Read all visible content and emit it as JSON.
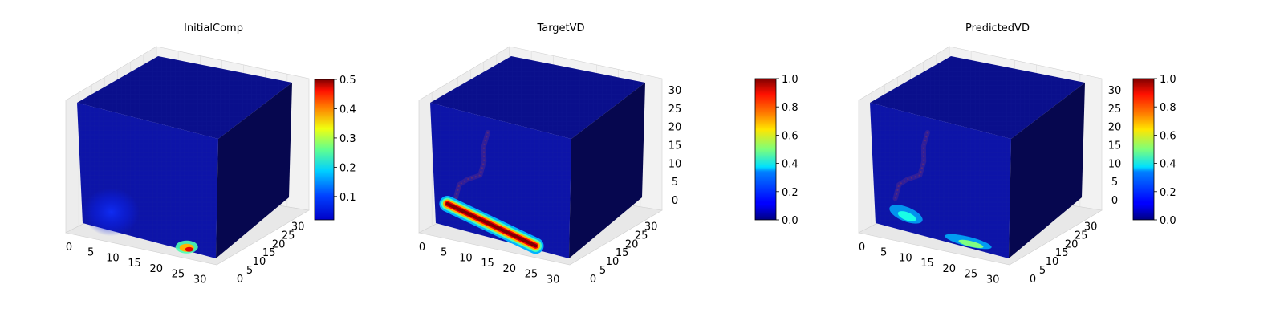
{
  "figure": {
    "colormap": "jet",
    "panels": [
      {
        "title": "InitialComp",
        "x_ticks": [
          "0",
          "5",
          "10",
          "15",
          "20",
          "25",
          "30"
        ],
        "y_ticks": [
          "0",
          "5",
          "10",
          "15",
          "20",
          "25",
          "30"
        ],
        "z_ticks": [],
        "colorbar_ticks": [
          "0.1",
          "0.2",
          "0.3",
          "0.4",
          "0.5"
        ]
      },
      {
        "title": "TargetVD",
        "x_ticks": [
          "0",
          "5",
          "10",
          "15",
          "20",
          "25",
          "30"
        ],
        "y_ticks": [
          "0",
          "5",
          "10",
          "15",
          "20",
          "25",
          "30"
        ],
        "z_ticks": [
          "0",
          "5",
          "10",
          "15",
          "20",
          "25",
          "30"
        ],
        "colorbar_ticks": [
          "0.0",
          "0.2",
          "0.4",
          "0.6",
          "0.8",
          "1.0"
        ]
      },
      {
        "title": "PredictedVD",
        "x_ticks": [
          "0",
          "5",
          "10",
          "15",
          "20",
          "25",
          "30"
        ],
        "y_ticks": [
          "0",
          "5",
          "10",
          "15",
          "20",
          "25",
          "30"
        ],
        "z_ticks": [
          "0",
          "5",
          "10",
          "15",
          "20",
          "25",
          "30"
        ],
        "colorbar_ticks": [
          "0.0",
          "0.2",
          "0.4",
          "0.6",
          "0.8",
          "1.0"
        ]
      }
    ]
  },
  "chart_data": [
    {
      "type": "heatmap",
      "title": "InitialComp",
      "xlim": [
        0,
        32
      ],
      "ylim": [
        0,
        32
      ],
      "zlim": [
        0,
        32
      ],
      "x_ticks": [
        0,
        5,
        10,
        15,
        20,
        25,
        30
      ],
      "y_ticks": [
        0,
        5,
        10,
        15,
        20,
        25,
        30
      ],
      "colorbar_range": [
        0.02,
        0.5
      ],
      "colorbar_ticks": [
        0.1,
        0.2,
        0.3,
        0.4,
        0.5
      ],
      "front_face_hotspots": [
        {
          "x": 7,
          "z": 5,
          "value": 0.1,
          "spread": 5
        },
        {
          "x": 25,
          "z": 1,
          "value": 0.45,
          "spread": 1.5
        }
      ],
      "background_value": 0.02
    },
    {
      "type": "heatmap",
      "title": "TargetVD",
      "xlim": [
        0,
        32
      ],
      "ylim": [
        0,
        32
      ],
      "zlim": [
        0,
        32
      ],
      "x_ticks": [
        0,
        5,
        10,
        15,
        20,
        25,
        30
      ],
      "y_ticks": [
        0,
        5,
        10,
        15,
        20,
        25,
        30
      ],
      "z_ticks": [
        0,
        5,
        10,
        15,
        20,
        25,
        30
      ],
      "colorbar_range": [
        0.0,
        1.0
      ],
      "colorbar_ticks": [
        0.0,
        0.2,
        0.4,
        0.6,
        0.8,
        1.0
      ],
      "front_face_streak": {
        "from": [
          3,
          6
        ],
        "to": [
          24,
          1
        ],
        "value": 1.0,
        "width": 2
      },
      "faint_path": [
        [
          5,
          8
        ],
        [
          6,
          12
        ],
        [
          8,
          14
        ],
        [
          11,
          16
        ],
        [
          12,
          20
        ],
        [
          12,
          24
        ],
        [
          13,
          28
        ]
      ],
      "background_value": 0.05
    },
    {
      "type": "heatmap",
      "title": "PredictedVD",
      "xlim": [
        0,
        32
      ],
      "ylim": [
        0,
        32
      ],
      "zlim": [
        0,
        32
      ],
      "x_ticks": [
        0,
        5,
        10,
        15,
        20,
        25,
        30
      ],
      "y_ticks": [
        0,
        5,
        10,
        15,
        20,
        25,
        30
      ],
      "z_ticks": [
        0,
        5,
        10,
        15,
        20,
        25,
        30
      ],
      "colorbar_range": [
        0.0,
        1.0
      ],
      "colorbar_ticks": [
        0.0,
        0.2,
        0.4,
        0.6,
        0.8,
        1.0
      ],
      "front_face_blobs": [
        {
          "x": 8,
          "z": 4,
          "value": 0.35,
          "spread": 2
        },
        {
          "x": 24,
          "z": 1,
          "value": 0.5,
          "spread": 2
        }
      ],
      "faint_path": [
        [
          5,
          8
        ],
        [
          6,
          12
        ],
        [
          8,
          14
        ],
        [
          11,
          16
        ],
        [
          12,
          20
        ],
        [
          12,
          24
        ],
        [
          13,
          28
        ]
      ],
      "background_value": 0.05
    }
  ]
}
